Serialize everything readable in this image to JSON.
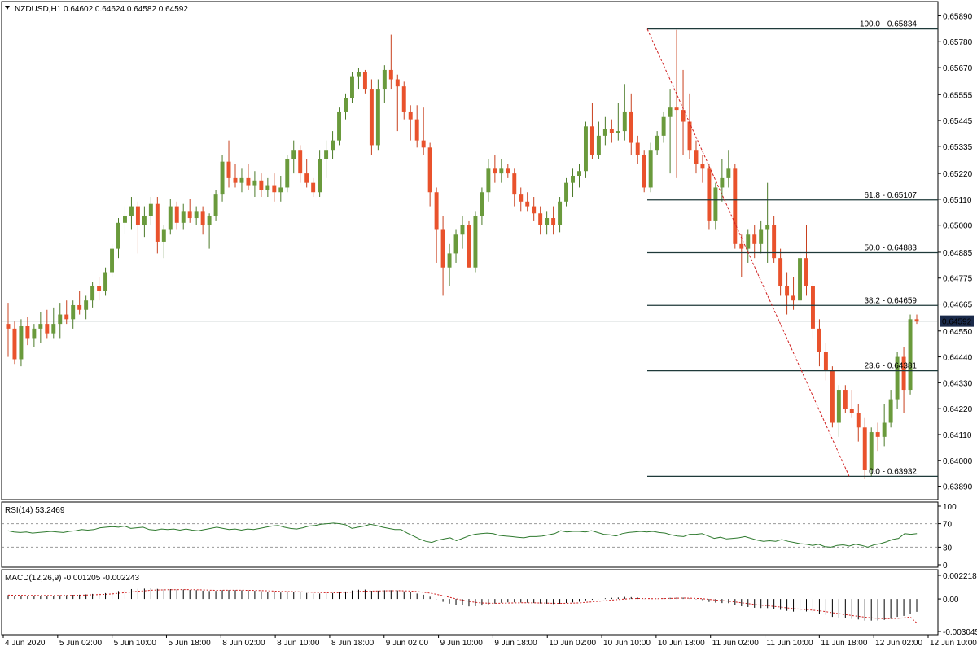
{
  "header": {
    "symbol_line": "NZDUSD,H1  0.64602 0.64624 0.64582 0.64592"
  },
  "colors": {
    "bull": "#6a9a3c",
    "bear": "#e9522c",
    "bull_wick": "#4b7a28",
    "bear_wick": "#c8401e",
    "fib": "#1f3a3a",
    "trend": "#d02020",
    "rsi_line": "#2f7a2f",
    "macd_signal": "#d02020",
    "bid_box": "#1a2a4a"
  },
  "chart_data": [
    {
      "type": "candlestick",
      "symbol": "NZDUSD",
      "timeframe": "H1",
      "ohlc_readout": {
        "open": 0.64602,
        "high": 0.64624,
        "low": 0.64582,
        "close": 0.64592
      },
      "ylim": [
        0.6384,
        0.6594
      ],
      "y_ticks": [
        "0.65890",
        "0.65780",
        "0.65670",
        "0.65555",
        "0.65445",
        "0.65335",
        "0.65220",
        "0.65110",
        "0.65000",
        "0.64885",
        "0.64775",
        "0.64665",
        "0.64550",
        "0.64440",
        "0.64330",
        "0.64220",
        "0.64110",
        "0.64000",
        "0.63890"
      ],
      "x_ticks": [
        "4 Jun 2020",
        "5 Jun 02:00",
        "5 Jun 10:00",
        "5 Jun 18:00",
        "8 Jun 02:00",
        "8 Jun 10:00",
        "8 Jun 18:00",
        "9 Jun 02:00",
        "9 Jun 10:00",
        "9 Jun 18:00",
        "10 Jun 02:00",
        "10 Jun 10:00",
        "10 Jun 18:00",
        "11 Jun 02:00",
        "11 Jun 10:00",
        "11 Jun 18:00",
        "12 Jun 02:00",
        "12 Jun 10:00"
      ],
      "current_price": "0.64592",
      "fib_levels": [
        {
          "label": "100.0 - 0.65834",
          "value": 0.65834
        },
        {
          "label": "61.8 - 0.65107",
          "value": 0.65107
        },
        {
          "label": "50.0 - 0.64883",
          "value": 0.64883
        },
        {
          "label": "38.2 - 0.64659",
          "value": 0.64659
        },
        {
          "label": "23.6 - 0.64381",
          "value": 0.64381
        },
        {
          "label": "0.0 - 0.63932",
          "value": 0.63932
        }
      ],
      "fib_trendline": {
        "from": 0.65834,
        "to": 0.63932
      },
      "candles": [
        [
          0.6458,
          0.6467,
          0.6444,
          0.6456
        ],
        [
          0.6456,
          0.6459,
          0.6441,
          0.6443
        ],
        [
          0.6443,
          0.646,
          0.644,
          0.6457
        ],
        [
          0.6457,
          0.6461,
          0.6449,
          0.6452
        ],
        [
          0.6452,
          0.6458,
          0.6448,
          0.6456
        ],
        [
          0.6456,
          0.6463,
          0.645,
          0.6458
        ],
        [
          0.6458,
          0.6464,
          0.6452,
          0.6454
        ],
        [
          0.6454,
          0.6465,
          0.6452,
          0.6458
        ],
        [
          0.6458,
          0.6467,
          0.6452,
          0.6462
        ],
        [
          0.6462,
          0.6468,
          0.6458,
          0.646
        ],
        [
          0.646,
          0.6468,
          0.6456,
          0.6466
        ],
        [
          0.6466,
          0.6472,
          0.6462,
          0.6464
        ],
        [
          0.6464,
          0.647,
          0.646,
          0.6468
        ],
        [
          0.6468,
          0.6476,
          0.6465,
          0.6474
        ],
        [
          0.6474,
          0.6478,
          0.6468,
          0.6472
        ],
        [
          0.6472,
          0.6482,
          0.647,
          0.648
        ],
        [
          0.648,
          0.6492,
          0.6478,
          0.649
        ],
        [
          0.649,
          0.6503,
          0.6486,
          0.6501
        ],
        [
          0.6501,
          0.6508,
          0.6496,
          0.6504
        ],
        [
          0.6504,
          0.6512,
          0.6498,
          0.6508
        ],
        [
          0.6508,
          0.651,
          0.6488,
          0.65
        ],
        [
          0.65,
          0.6508,
          0.6495,
          0.6504
        ],
        [
          0.6504,
          0.6512,
          0.65,
          0.6509
        ],
        [
          0.6509,
          0.6512,
          0.6488,
          0.6493
        ],
        [
          0.6493,
          0.65,
          0.6486,
          0.6498
        ],
        [
          0.6498,
          0.6511,
          0.6496,
          0.6508
        ],
        [
          0.6508,
          0.651,
          0.6498,
          0.6501
        ],
        [
          0.6501,
          0.6509,
          0.6498,
          0.6506
        ],
        [
          0.6506,
          0.6511,
          0.6501,
          0.6503
        ],
        [
          0.6503,
          0.6508,
          0.65,
          0.6506
        ],
        [
          0.6506,
          0.6508,
          0.6496,
          0.65
        ],
        [
          0.65,
          0.6505,
          0.649,
          0.6504
        ],
        [
          0.6504,
          0.6515,
          0.6502,
          0.6513
        ],
        [
          0.6513,
          0.653,
          0.651,
          0.6527
        ],
        [
          0.6527,
          0.6536,
          0.6516,
          0.652
        ],
        [
          0.652,
          0.6526,
          0.6516,
          0.6518
        ],
        [
          0.6518,
          0.6524,
          0.6514,
          0.652
        ],
        [
          0.652,
          0.6526,
          0.6515,
          0.6517
        ],
        [
          0.6517,
          0.6523,
          0.6512,
          0.6519
        ],
        [
          0.6519,
          0.6522,
          0.6512,
          0.6515
        ],
        [
          0.6515,
          0.652,
          0.6512,
          0.6517
        ],
        [
          0.6517,
          0.6522,
          0.651,
          0.6514
        ],
        [
          0.6514,
          0.6521,
          0.651,
          0.6516
        ],
        [
          0.6516,
          0.653,
          0.6514,
          0.6528
        ],
        [
          0.6528,
          0.6536,
          0.6522,
          0.6532
        ],
        [
          0.6532,
          0.6534,
          0.6518,
          0.6522
        ],
        [
          0.6522,
          0.6528,
          0.6516,
          0.6518
        ],
        [
          0.6518,
          0.652,
          0.6512,
          0.6514
        ],
        [
          0.6514,
          0.6532,
          0.6512,
          0.6528
        ],
        [
          0.6528,
          0.6536,
          0.652,
          0.6532
        ],
        [
          0.6532,
          0.654,
          0.6528,
          0.6536
        ],
        [
          0.6536,
          0.655,
          0.6534,
          0.6548
        ],
        [
          0.6548,
          0.6556,
          0.6545,
          0.6554
        ],
        [
          0.6554,
          0.6565,
          0.6552,
          0.6563
        ],
        [
          0.6563,
          0.6567,
          0.6558,
          0.6565
        ],
        [
          0.6565,
          0.6566,
          0.6556,
          0.6558
        ],
        [
          0.6558,
          0.6562,
          0.653,
          0.6534
        ],
        [
          0.6534,
          0.6562,
          0.6532,
          0.6558
        ],
        [
          0.6558,
          0.6568,
          0.6552,
          0.6566
        ],
        [
          0.6566,
          0.6581,
          0.6558,
          0.6562
        ],
        [
          0.6562,
          0.6564,
          0.654,
          0.6559
        ],
        [
          0.6559,
          0.6561,
          0.6545,
          0.6548
        ],
        [
          0.6548,
          0.6551,
          0.6536,
          0.6545
        ],
        [
          0.6545,
          0.6551,
          0.6533,
          0.6536
        ],
        [
          0.6536,
          0.655,
          0.653,
          0.6533
        ],
        [
          0.6533,
          0.6535,
          0.6508,
          0.6514
        ],
        [
          0.6514,
          0.6516,
          0.6484,
          0.6498
        ],
        [
          0.6498,
          0.6504,
          0.647,
          0.6482
        ],
        [
          0.6482,
          0.6492,
          0.6474,
          0.6488
        ],
        [
          0.6488,
          0.6498,
          0.6484,
          0.6496
        ],
        [
          0.6496,
          0.6504,
          0.649,
          0.65
        ],
        [
          0.65,
          0.6502,
          0.6482,
          0.6482
        ],
        [
          0.6482,
          0.6506,
          0.648,
          0.6504
        ],
        [
          0.6504,
          0.6516,
          0.65,
          0.6514
        ],
        [
          0.6514,
          0.6528,
          0.651,
          0.6524
        ],
        [
          0.6524,
          0.653,
          0.6518,
          0.6522
        ],
        [
          0.6522,
          0.6528,
          0.6518,
          0.6524
        ],
        [
          0.6524,
          0.6526,
          0.652,
          0.6522
        ],
        [
          0.6522,
          0.6524,
          0.6508,
          0.6513
        ],
        [
          0.6513,
          0.6516,
          0.6506,
          0.651
        ],
        [
          0.651,
          0.6514,
          0.6506,
          0.6508
        ],
        [
          0.6508,
          0.6512,
          0.6502,
          0.6505
        ],
        [
          0.6505,
          0.6508,
          0.6496,
          0.65
        ],
        [
          0.65,
          0.6506,
          0.6496,
          0.6503
        ],
        [
          0.6503,
          0.6508,
          0.6496,
          0.65
        ],
        [
          0.65,
          0.6512,
          0.6497,
          0.651
        ],
        [
          0.651,
          0.652,
          0.6508,
          0.6518
        ],
        [
          0.6518,
          0.6524,
          0.6512,
          0.6521
        ],
        [
          0.6521,
          0.6526,
          0.6516,
          0.6523
        ],
        [
          0.6523,
          0.6544,
          0.652,
          0.6542
        ],
        [
          0.6542,
          0.6552,
          0.6528,
          0.653
        ],
        [
          0.653,
          0.6544,
          0.6528,
          0.6538
        ],
        [
          0.6538,
          0.6546,
          0.6534,
          0.6541
        ],
        [
          0.6541,
          0.6545,
          0.6535,
          0.6539
        ],
        [
          0.6539,
          0.6552,
          0.6536,
          0.654
        ],
        [
          0.654,
          0.656,
          0.6536,
          0.6548
        ],
        [
          0.6548,
          0.6556,
          0.653,
          0.6535
        ],
        [
          0.6535,
          0.6538,
          0.6526,
          0.653
        ],
        [
          0.653,
          0.6532,
          0.6514,
          0.6516
        ],
        [
          0.6516,
          0.6535,
          0.6514,
          0.6532
        ],
        [
          0.6532,
          0.654,
          0.653,
          0.6538
        ],
        [
          0.6538,
          0.6548,
          0.6535,
          0.6546
        ],
        [
          0.6546,
          0.6558,
          0.6522,
          0.655
        ],
        [
          0.655,
          0.6583,
          0.652,
          0.6549
        ],
        [
          0.6549,
          0.6566,
          0.653,
          0.6544
        ],
        [
          0.6544,
          0.6556,
          0.6528,
          0.6532
        ],
        [
          0.6532,
          0.6536,
          0.6522,
          0.6526
        ],
        [
          0.6526,
          0.653,
          0.6518,
          0.6524
        ],
        [
          0.6524,
          0.6526,
          0.6498,
          0.6502
        ],
        [
          0.6502,
          0.6518,
          0.6498,
          0.6516
        ],
        [
          0.6516,
          0.6528,
          0.651,
          0.652
        ],
        [
          0.652,
          0.6532,
          0.6516,
          0.6524
        ],
        [
          0.6524,
          0.6526,
          0.649,
          0.6492
        ],
        [
          0.6492,
          0.6496,
          0.6478,
          0.649
        ],
        [
          0.649,
          0.6498,
          0.6484,
          0.6496
        ],
        [
          0.6496,
          0.65,
          0.6486,
          0.6492
        ],
        [
          0.6492,
          0.6502,
          0.6488,
          0.6498
        ],
        [
          0.6498,
          0.6518,
          0.6484,
          0.65
        ],
        [
          0.65,
          0.6504,
          0.6484,
          0.6486
        ],
        [
          0.6486,
          0.649,
          0.647,
          0.6474
        ],
        [
          0.6474,
          0.648,
          0.6462,
          0.647
        ],
        [
          0.647,
          0.6478,
          0.6464,
          0.6468
        ],
        [
          0.6468,
          0.649,
          0.6466,
          0.6486
        ],
        [
          0.6486,
          0.65,
          0.647,
          0.6474
        ],
        [
          0.6474,
          0.6476,
          0.6452,
          0.6456
        ],
        [
          0.6456,
          0.646,
          0.644,
          0.6446
        ],
        [
          0.6446,
          0.645,
          0.6434,
          0.6438
        ],
        [
          0.6438,
          0.644,
          0.6414,
          0.6416
        ],
        [
          0.6416,
          0.6432,
          0.641,
          0.643
        ],
        [
          0.643,
          0.6432,
          0.642,
          0.6422
        ],
        [
          0.6422,
          0.643,
          0.6418,
          0.642
        ],
        [
          0.642,
          0.6424,
          0.6408,
          0.6414
        ],
        [
          0.6414,
          0.6418,
          0.6392,
          0.6396
        ],
        [
          0.6396,
          0.6414,
          0.6393,
          0.6412
        ],
        [
          0.6412,
          0.6416,
          0.6404,
          0.641
        ],
        [
          0.641,
          0.6424,
          0.6406,
          0.6416
        ],
        [
          0.6416,
          0.643,
          0.6414,
          0.6426
        ],
        [
          0.6426,
          0.6446,
          0.6422,
          0.6444
        ],
        [
          0.6444,
          0.6448,
          0.642,
          0.643
        ],
        [
          0.643,
          0.6462,
          0.6428,
          0.646
        ],
        [
          0.646,
          0.6462,
          0.6458,
          0.6459
        ]
      ]
    },
    {
      "type": "line",
      "name": "RSI(14)",
      "readout": "RSI(14) 53.2469",
      "ylim": [
        0,
        100
      ],
      "y_ticks": [
        "100",
        "70",
        "30",
        "0"
      ],
      "levels": [
        70,
        30
      ],
      "values": [
        58,
        56,
        55,
        56,
        54,
        55,
        56,
        57,
        56,
        55,
        57,
        58,
        60,
        59,
        60,
        63,
        64,
        65,
        64,
        66,
        62,
        63,
        64,
        60,
        59,
        61,
        60,
        61,
        59,
        61,
        59,
        58,
        60,
        62,
        64,
        62,
        60,
        61,
        59,
        61,
        60,
        62,
        64,
        66,
        67,
        64,
        62,
        61,
        63,
        66,
        67,
        69,
        70,
        71,
        70,
        68,
        62,
        64,
        66,
        69,
        67,
        64,
        62,
        60,
        60,
        54,
        49,
        44,
        40,
        38,
        42,
        44,
        46,
        41,
        45,
        49,
        52,
        53,
        54,
        53,
        50,
        49,
        48,
        47,
        46,
        48,
        48,
        49,
        51,
        53,
        58,
        56,
        57,
        57,
        56,
        58,
        55,
        52,
        51,
        49,
        53,
        55,
        56,
        57,
        56,
        57,
        55,
        54,
        51,
        49,
        48,
        52,
        52,
        53,
        49,
        45,
        47,
        44,
        45,
        46,
        48,
        45,
        42,
        40,
        41,
        40,
        43,
        40,
        38,
        36,
        35,
        33,
        35,
        31,
        30,
        33,
        34,
        32,
        35,
        33,
        30,
        34,
        36,
        39,
        43,
        45,
        53,
        52,
        53
      ]
    },
    {
      "type": "bar",
      "name": "MACD(12,26,9)",
      "readout": "MACD(12,26,9) -0.001205 -0.002243",
      "ylim": [
        -0.003045,
        0.002218
      ],
      "y_ticks": [
        "0.002218",
        "0.00",
        "-0.003045"
      ],
      "histogram_start": 0.0009,
      "histogram_end": -0.001205,
      "signal_start": 0.0007,
      "signal_end": -0.002243
    }
  ]
}
